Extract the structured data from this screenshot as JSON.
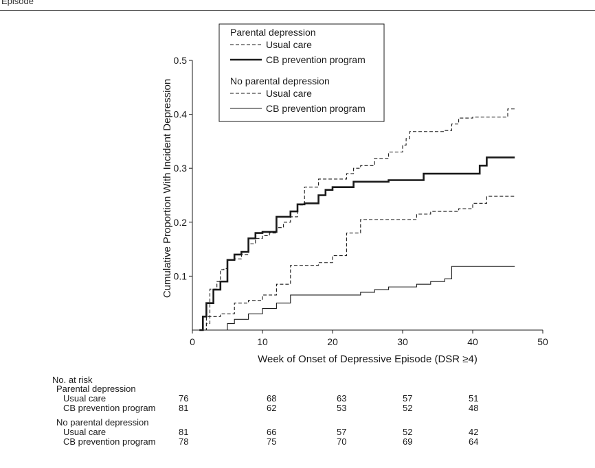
{
  "header": {
    "label": "Episode"
  },
  "colors": {
    "ink": "#1a1a1a",
    "axis": "#1a1a1a",
    "usual": "#2a2a2a"
  },
  "chart_data": {
    "type": "line",
    "xlabel": "Week of Onset of Depressive Episode (DSR ≥4)",
    "ylabel": "Cumulative Proportion With Incident Depression",
    "xlim": [
      0,
      50
    ],
    "ylim": [
      0,
      0.5
    ],
    "xticks": [
      "0",
      "10",
      "20",
      "30",
      "40",
      "50"
    ],
    "yticks": [
      "0.1",
      "0.2",
      "0.3",
      "0.4",
      "0.5"
    ],
    "grid": false,
    "legend": {
      "placement": "top",
      "group1": "Parental depression",
      "group2": "No parental depression",
      "items": [
        "Usual care",
        "CB prevention program",
        "Usual care",
        "CB prevention program"
      ]
    },
    "series": [
      {
        "group": "Parental depression",
        "name": "Usual care",
        "style": "dashed-thin",
        "x": [
          1,
          2,
          2.5,
          3.5,
          4,
          4.5,
          5,
          6,
          7,
          8,
          9,
          10,
          11,
          12,
          13,
          14,
          15,
          16,
          18,
          20,
          22,
          23,
          24,
          26,
          28,
          30,
          30.5,
          31,
          32,
          34,
          36,
          37,
          38,
          40,
          44,
          45,
          46
        ],
        "y": [
          0,
          0.012,
          0.076,
          0.09,
          0.112,
          0.114,
          0.13,
          0.132,
          0.14,
          0.16,
          0.17,
          0.175,
          0.18,
          0.19,
          0.2,
          0.21,
          0.232,
          0.265,
          0.28,
          0.28,
          0.29,
          0.3,
          0.305,
          0.318,
          0.33,
          0.343,
          0.355,
          0.368,
          0.368,
          0.368,
          0.37,
          0.382,
          0.393,
          0.395,
          0.395,
          0.41,
          0.41
        ]
      },
      {
        "group": "Parental depression",
        "name": "CB prevention program",
        "style": "solid-thick",
        "x": [
          1,
          1.5,
          2,
          3,
          4,
          5,
          6,
          7,
          8,
          9,
          10,
          12,
          14,
          15,
          16,
          18,
          19,
          20,
          23,
          26,
          28,
          33,
          36,
          38,
          41,
          42,
          46
        ],
        "y": [
          0,
          0.025,
          0.05,
          0.075,
          0.09,
          0.13,
          0.14,
          0.145,
          0.17,
          0.18,
          0.182,
          0.21,
          0.22,
          0.233,
          0.235,
          0.25,
          0.26,
          0.265,
          0.275,
          0.275,
          0.278,
          0.29,
          0.29,
          0.29,
          0.305,
          0.32,
          0.32
        ]
      },
      {
        "group": "No parental depression",
        "name": "Usual care",
        "style": "dashed-thin",
        "x": [
          1,
          2,
          4,
          6,
          8,
          10,
          12,
          14,
          16,
          18,
          20,
          22,
          24,
          26,
          28,
          30,
          32,
          34,
          36,
          38,
          40,
          42,
          44,
          46
        ],
        "y": [
          0,
          0.025,
          0.03,
          0.05,
          0.055,
          0.065,
          0.085,
          0.12,
          0.12,
          0.125,
          0.138,
          0.18,
          0.205,
          0.205,
          0.205,
          0.205,
          0.215,
          0.22,
          0.22,
          0.225,
          0.235,
          0.248,
          0.248,
          0.248
        ]
      },
      {
        "group": "No parental depression",
        "name": "CB prevention program",
        "style": "solid-thin",
        "x": [
          1,
          5,
          6,
          8,
          10,
          12,
          14,
          16,
          18,
          20,
          22,
          24,
          26,
          28,
          30,
          32,
          34,
          36,
          37,
          40,
          44,
          46
        ],
        "y": [
          0,
          0.012,
          0.02,
          0.03,
          0.04,
          0.05,
          0.065,
          0.065,
          0.065,
          0.065,
          0.065,
          0.07,
          0.075,
          0.08,
          0.08,
          0.085,
          0.09,
          0.095,
          0.118,
          0.118,
          0.118,
          0.118
        ]
      }
    ]
  },
  "at_risk": {
    "title": "No. at risk",
    "groups": [
      {
        "label": "Parental depression",
        "rows": [
          {
            "label": "Usual care",
            "values": [
              "76",
              "68",
              "63",
              "57",
              "51"
            ]
          },
          {
            "label": "CB prevention program",
            "values": [
              "81",
              "62",
              "53",
              "52",
              "48"
            ]
          }
        ]
      },
      {
        "label": "No parental depression",
        "rows": [
          {
            "label": "Usual care",
            "values": [
              "81",
              "66",
              "57",
              "52",
              "42"
            ]
          },
          {
            "label": "CB prevention program",
            "values": [
              "78",
              "75",
              "70",
              "69",
              "64"
            ]
          }
        ]
      }
    ]
  }
}
